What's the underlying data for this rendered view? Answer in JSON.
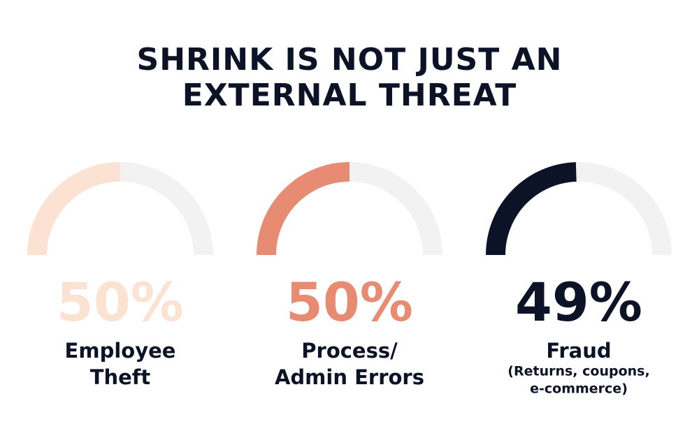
{
  "title": [
    "SHRINK IS NOT JUST AN",
    "EXTERNAL THREAT"
  ],
  "chart_data": [
    {
      "type": "gauge",
      "range": [
        0,
        100
      ],
      "value": 50,
      "value_label": "50%",
      "color": "#fbe2d2",
      "track_color": "#f2f2f2",
      "label": [
        "Employee",
        "Theft"
      ]
    },
    {
      "type": "gauge",
      "range": [
        0,
        100
      ],
      "value": 50,
      "value_label": "50%",
      "color": "#e88b73",
      "track_color": "#f2f2f2",
      "label": [
        "Process/",
        "Admin Errors"
      ]
    },
    {
      "type": "gauge",
      "range": [
        0,
        100
      ],
      "value": 49,
      "value_label": "49%",
      "color": "#0d1327",
      "track_color": "#f2f2f2",
      "label": [
        "Fraud"
      ],
      "sublabel": [
        "(Returns, coupons,",
        "e-commerce)"
      ]
    }
  ]
}
